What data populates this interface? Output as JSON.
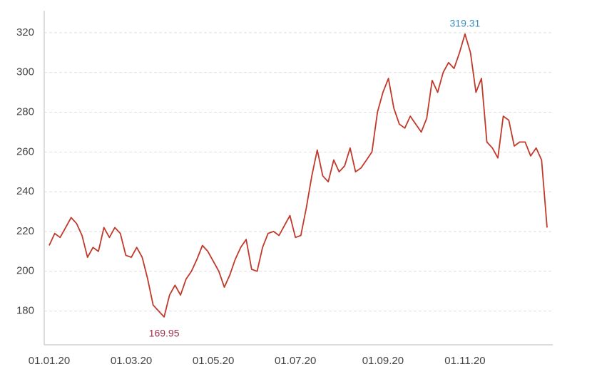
{
  "chart_data": {
    "type": "line",
    "categories": [
      "01.01.20",
      null,
      null,
      null,
      null,
      null,
      null,
      null,
      null,
      null,
      null,
      null,
      null,
      null,
      null,
      "01.03.20",
      null,
      null,
      null,
      null,
      null,
      null,
      null,
      null,
      null,
      null,
      null,
      null,
      null,
      null,
      "01.05.20",
      null,
      null,
      null,
      null,
      null,
      null,
      null,
      null,
      null,
      null,
      null,
      null,
      null,
      null,
      "01.07.20",
      null,
      null,
      null,
      null,
      null,
      null,
      null,
      null,
      null,
      null,
      null,
      null,
      null,
      null,
      null,
      "01.09.20",
      null,
      null,
      null,
      null,
      null,
      null,
      null,
      null,
      null,
      null,
      null,
      null,
      null,
      null,
      "01.11.20",
      null,
      null,
      null,
      null,
      null,
      null,
      null,
      null,
      null,
      null,
      null,
      null,
      null,
      null,
      null
    ],
    "series": [
      {
        "color": "#c0392b",
        "values": [
          213,
          219,
          217,
          222,
          227,
          224,
          218,
          207,
          212,
          210,
          222,
          217,
          222,
          219,
          208,
          207,
          212,
          207,
          196,
          183,
          180,
          177,
          188,
          193,
          188,
          196,
          200,
          206,
          213,
          210,
          205,
          200,
          192,
          198,
          206,
          212,
          216,
          201,
          200,
          212,
          219,
          220,
          218,
          223,
          228,
          217,
          218,
          232,
          248,
          261,
          248,
          245,
          256,
          250,
          253,
          262,
          250,
          252,
          256,
          260,
          280,
          290,
          297,
          282,
          274,
          272,
          278,
          274,
          270,
          277,
          296,
          290,
          300,
          305,
          302,
          310,
          319.31,
          310,
          290,
          297,
          265,
          262,
          257,
          278,
          276,
          263,
          265,
          265,
          258,
          262,
          256,
          222
        ]
      }
    ],
    "annotations": [
      {
        "text": "319.31",
        "color": "#3a8fc0"
      },
      {
        "text": "169.95",
        "color": "#a0304a"
      }
    ],
    "ylim": [
      163,
      330
    ],
    "yticks": [
      180,
      200,
      220,
      240,
      260,
      280,
      300,
      320
    ],
    "grid": true
  }
}
